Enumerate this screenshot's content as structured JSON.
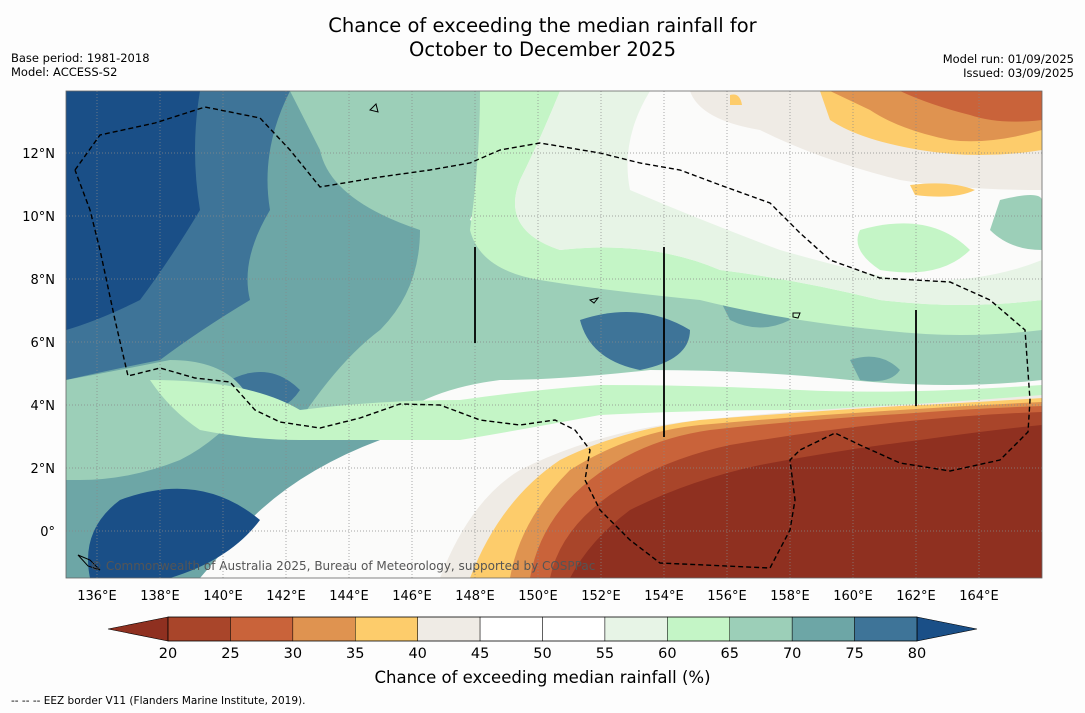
{
  "title": {
    "line1": "Chance of exceeding the median rainfall for",
    "line2": "October to December 2025"
  },
  "meta": {
    "base_period": "Base period: 1981-2018",
    "model": "Model: ACCESS-S2",
    "model_run": "Model run: 01/09/2025",
    "issued": "Issued: 03/09/2025"
  },
  "map": {
    "copyright": "© Commonwealth of Australia 2025, Bureau of Meteorology, supported by COSPPac",
    "lon_labels": [
      "136°E",
      "138°E",
      "140°E",
      "142°E",
      "144°E",
      "146°E",
      "148°E",
      "150°E",
      "152°E",
      "154°E",
      "156°E",
      "158°E",
      "160°E",
      "162°E",
      "164°E"
    ],
    "lat_labels": [
      "12°N",
      "10°N",
      "8°N",
      "6°N",
      "4°N",
      "2°N",
      "0°"
    ]
  },
  "colorbar": {
    "ticks": [
      "20",
      "25",
      "30",
      "35",
      "40",
      "45",
      "50",
      "55",
      "60",
      "65",
      "70",
      "75",
      "80"
    ],
    "colors": [
      "#a9452a",
      "#c9633a",
      "#df9350",
      "#fdcc6b",
      "#efebe5",
      "#ffffff",
      "#ffffff",
      "#e7f4e6",
      "#c4f5c6",
      "#9ccfb8",
      "#6da6a6",
      "#3e7498"
    ],
    "under_color": "#8f3020",
    "over_color": "#1a4f87",
    "label": "Chance of exceeding median rainfall (%)"
  },
  "footnote": "--  --  -- EEZ border V11 (Flanders Marine Institute, 2019)."
}
